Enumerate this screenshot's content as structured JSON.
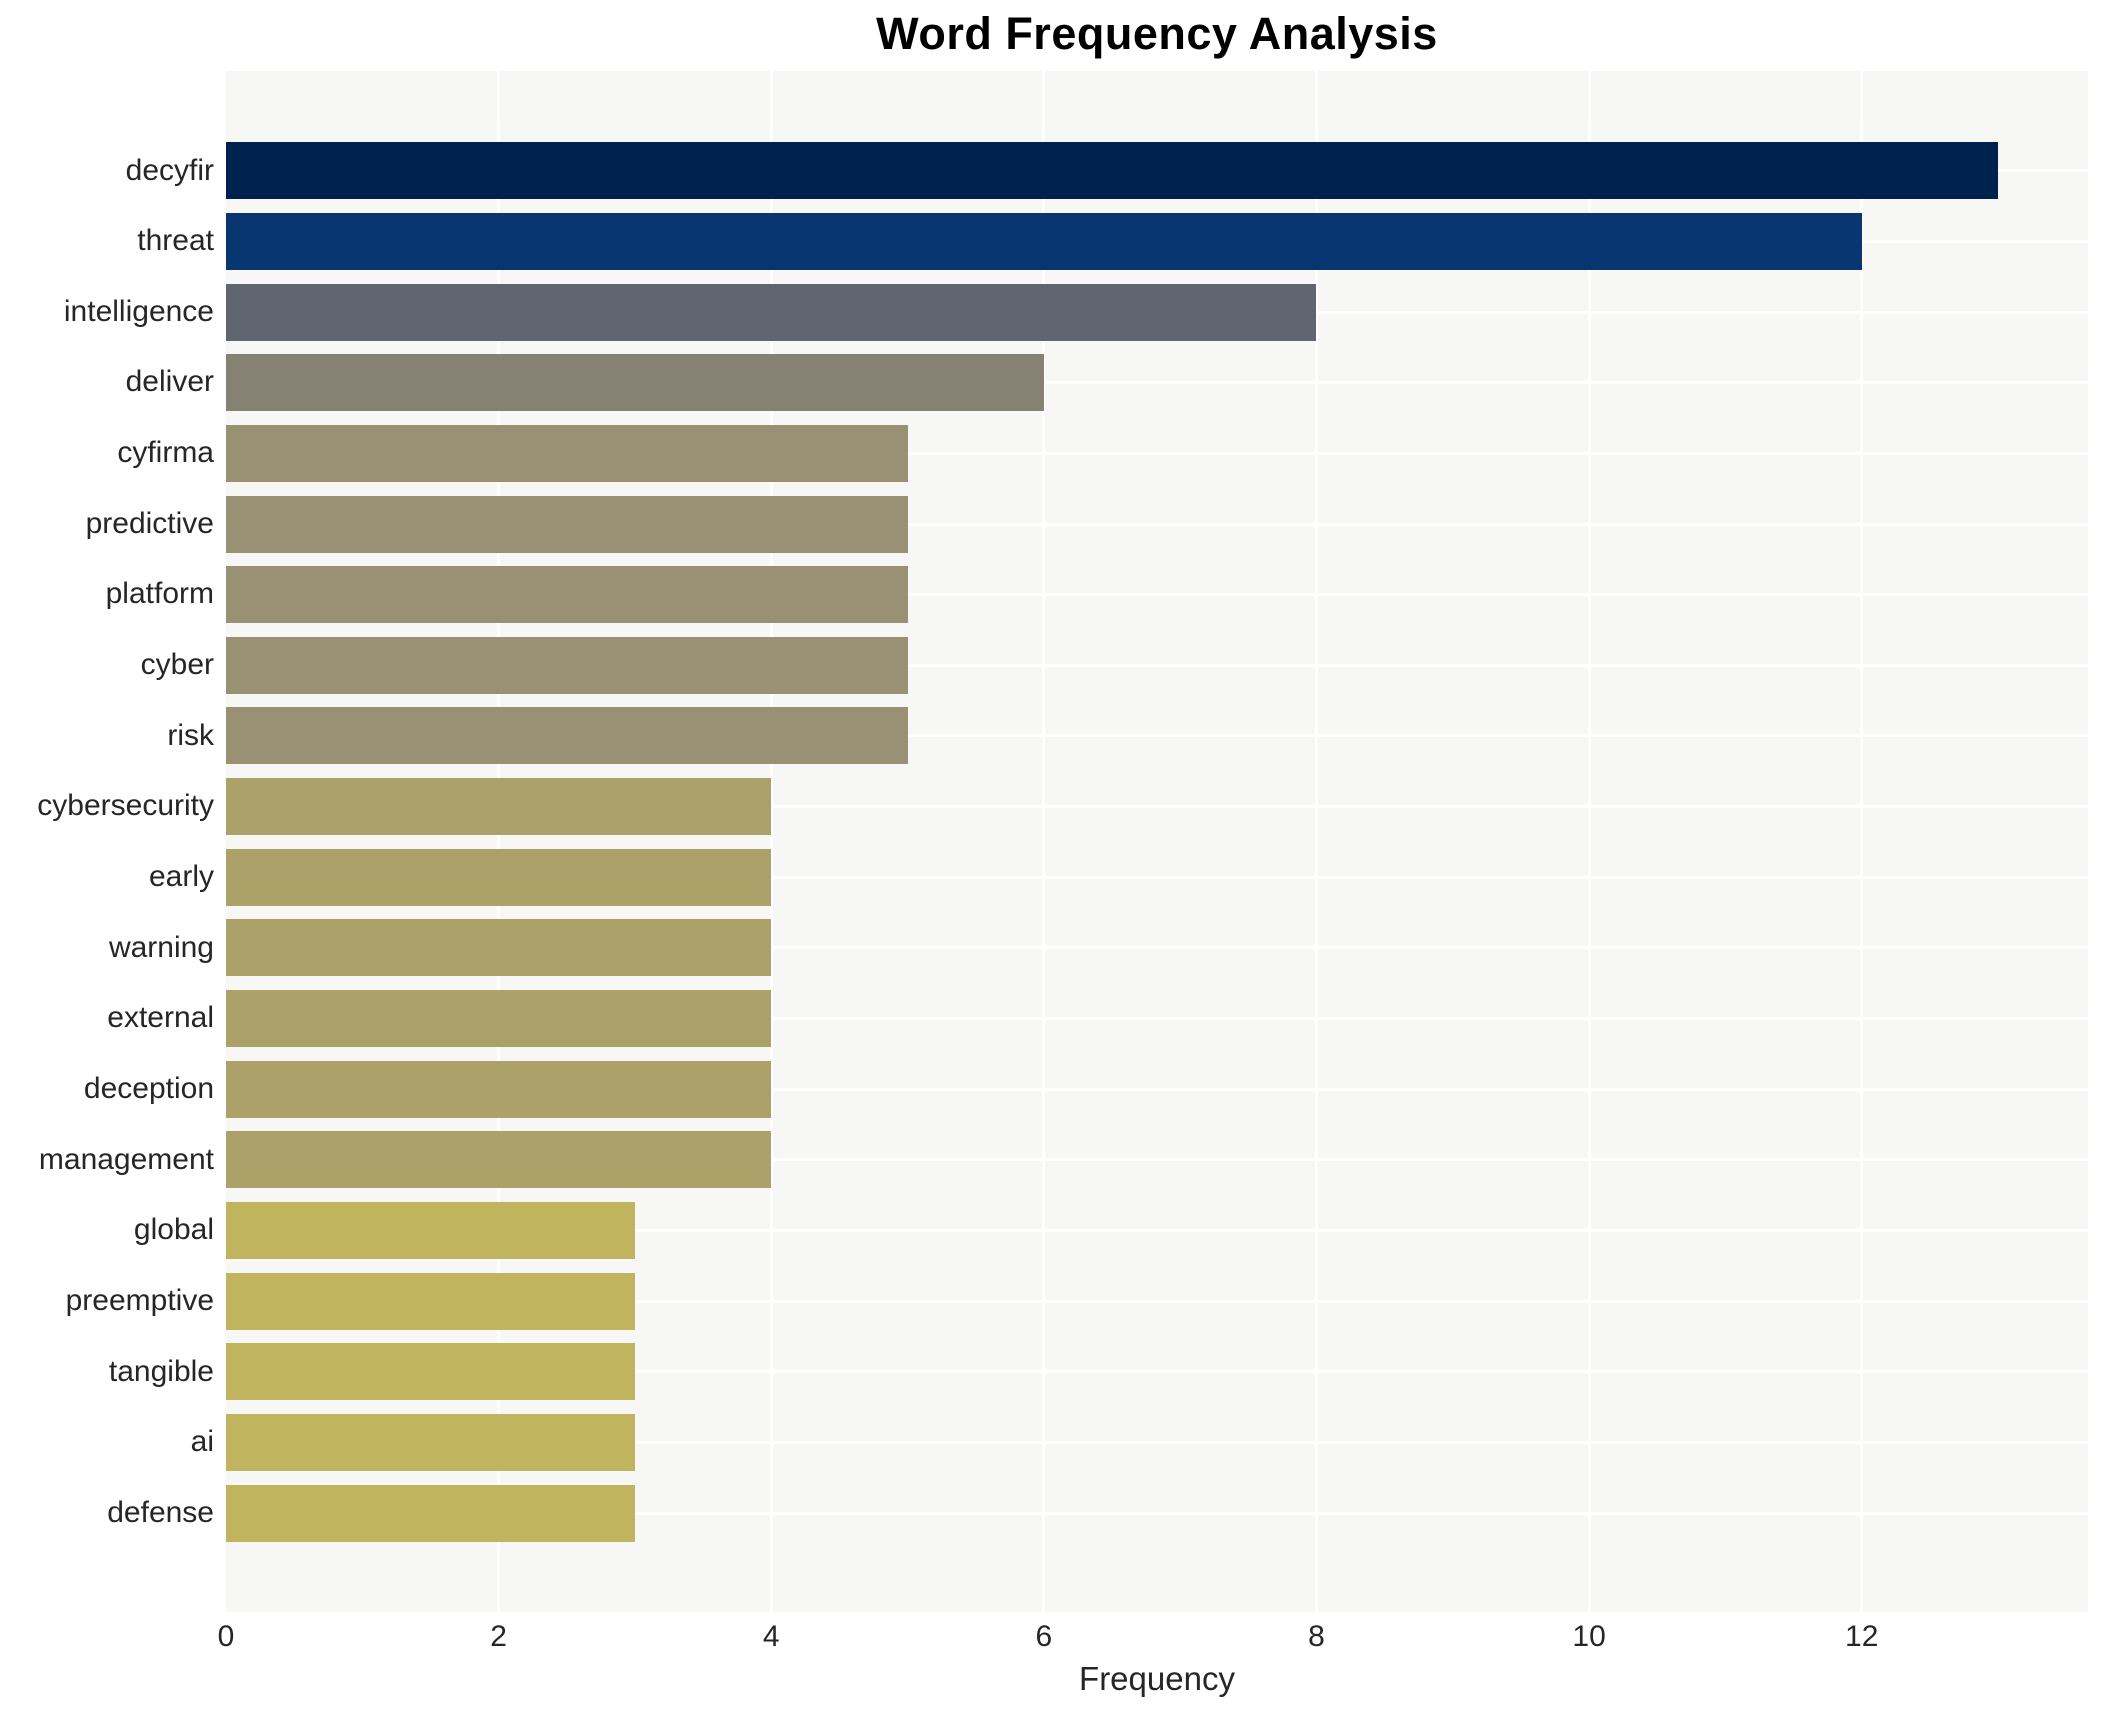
{
  "chart_data": {
    "type": "bar",
    "orientation": "horizontal",
    "title": "Word Frequency Analysis",
    "xlabel": "Frequency",
    "ylabel": "",
    "categories": [
      "decyfir",
      "threat",
      "intelligence",
      "deliver",
      "cyfirma",
      "predictive",
      "platform",
      "cyber",
      "risk",
      "cybersecurity",
      "early",
      "warning",
      "external",
      "deception",
      "management",
      "global",
      "preemptive",
      "tangible",
      "ai",
      "defense"
    ],
    "values": [
      13,
      12,
      8,
      6,
      5,
      5,
      5,
      5,
      5,
      4,
      4,
      4,
      4,
      4,
      4,
      3,
      3,
      3,
      3,
      3
    ],
    "bar_colors": [
      "#00224e",
      "#093570",
      "#61656f",
      "#858274",
      "#989174",
      "#989174",
      "#989174",
      "#989174",
      "#989174",
      "#aba169",
      "#aba169",
      "#aba169",
      "#aba169",
      "#aba169",
      "#aba169",
      "#c1b45e",
      "#c1b45e",
      "#c1b45e",
      "#c1b45e",
      "#c1b45e"
    ],
    "xticks": [
      0,
      2,
      4,
      6,
      8,
      10,
      12
    ],
    "xlim": [
      0,
      13.66
    ],
    "grid": true,
    "legend": false,
    "plot_background": "#f7f7f5",
    "grid_color": "#ffffff",
    "text_color": "#262626",
    "title_color": "#000000"
  }
}
